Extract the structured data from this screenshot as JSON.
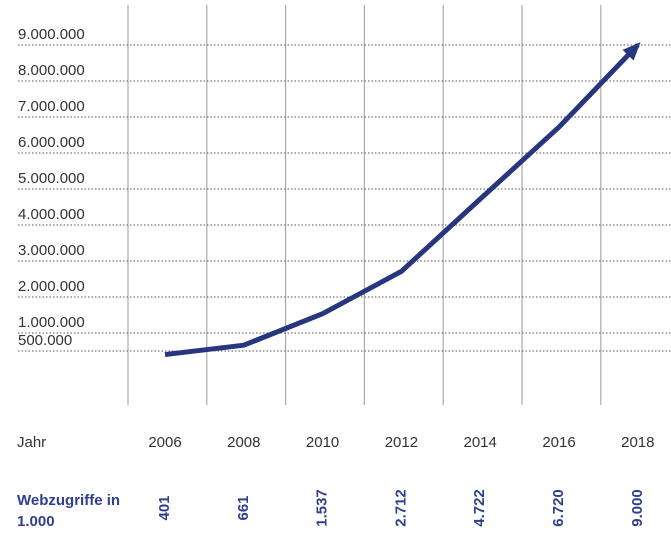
{
  "chart_data": {
    "type": "line",
    "x_label": "Jahr",
    "series_label": "Webzugriffe in 1.000",
    "categories": [
      "2006",
      "2008",
      "2010",
      "2012",
      "2014",
      "2016",
      "2018"
    ],
    "values": [
      401000,
      661000,
      1537000,
      2712000,
      4722000,
      6720000,
      9000000
    ],
    "value_labels": [
      "401",
      "661",
      "1.537",
      "2.712",
      "4.722",
      "6.720",
      "9.000"
    ],
    "color": "#27367f",
    "ylim": [
      0,
      9000000
    ],
    "yticks": [
      {
        "value": 500000,
        "label": "500.000"
      },
      {
        "value": 1000000,
        "label": "1.000.000"
      },
      {
        "value": 2000000,
        "label": "2.000.000"
      },
      {
        "value": 3000000,
        "label": "3.000.000"
      },
      {
        "value": 4000000,
        "label": "4.000.000"
      },
      {
        "value": 5000000,
        "label": "5.000.000"
      },
      {
        "value": 6000000,
        "label": "6.000.000"
      },
      {
        "value": 7000000,
        "label": "7.000.000"
      },
      {
        "value": 8000000,
        "label": "8.000.000"
      },
      {
        "value": 9000000,
        "label": "9.000.000"
      }
    ],
    "grid": true
  }
}
